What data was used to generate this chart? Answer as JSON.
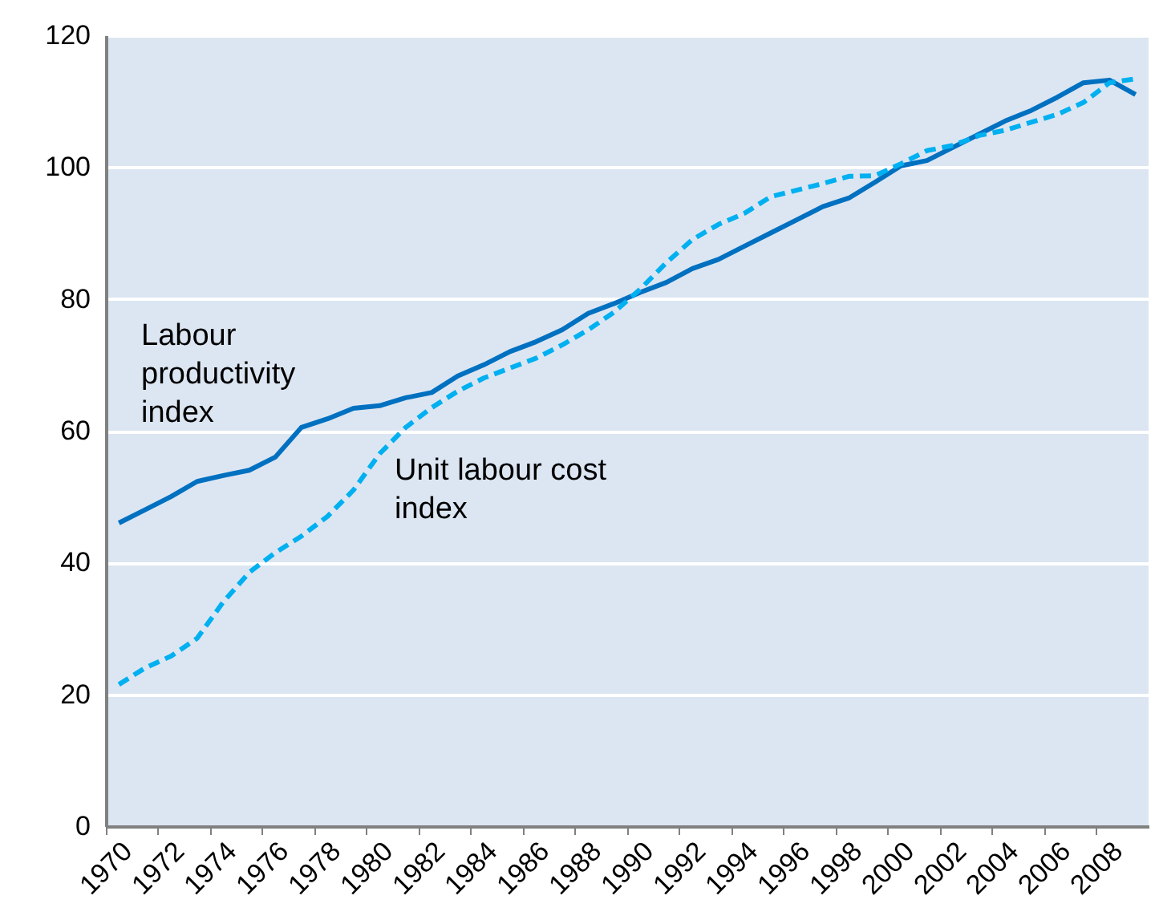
{
  "chart_data": {
    "type": "line",
    "categories": [
      "1970",
      null,
      "1972",
      null,
      "1974",
      null,
      "1976",
      null,
      "1978",
      null,
      "1980",
      null,
      "1982",
      null,
      "1984",
      null,
      "1986",
      null,
      "1988",
      null,
      "1990",
      null,
      "1992",
      null,
      "1994",
      null,
      "1996",
      null,
      "1998",
      null,
      "2000",
      null,
      "2002",
      null,
      "2004",
      null,
      "2006",
      null,
      "2008",
      null
    ],
    "series": [
      {
        "name": "Labour productivity index",
        "color": "#0070c0",
        "line_style": "solid",
        "values": [
          46,
          48,
          50,
          52.3,
          53.2,
          54,
          56,
          60.5,
          61.8,
          63.4,
          63.8,
          65,
          65.8,
          68.3,
          70,
          72,
          73.5,
          75.3,
          77.8,
          79.3,
          81,
          82.5,
          84.6,
          86,
          88,
          90,
          92,
          94,
          95.3,
          97.7,
          100.2,
          101,
          103,
          105,
          107,
          108.6,
          110.6,
          112.8,
          113.2,
          111
        ]
      },
      {
        "name": "Unit labour cost index",
        "color": "#00b0f0",
        "line_style": "dashed",
        "values": [
          21.5,
          24,
          25.8,
          28.5,
          34,
          38.5,
          41.5,
          44,
          47,
          51,
          56.5,
          60.5,
          63.5,
          66,
          68,
          69.5,
          71,
          73,
          75.3,
          78,
          81.5,
          85.5,
          89,
          91.3,
          93,
          95.5,
          96.5,
          97.5,
          98.6,
          98.7,
          100.5,
          102.5,
          103.3,
          104.8,
          105.6,
          106.8,
          108,
          109.8,
          112.8,
          113.4
        ]
      }
    ],
    "ylim": [
      0,
      120
    ],
    "yticks": [
      0,
      20,
      40,
      60,
      80,
      100,
      120
    ],
    "grid": "y",
    "legend": false
  }
}
